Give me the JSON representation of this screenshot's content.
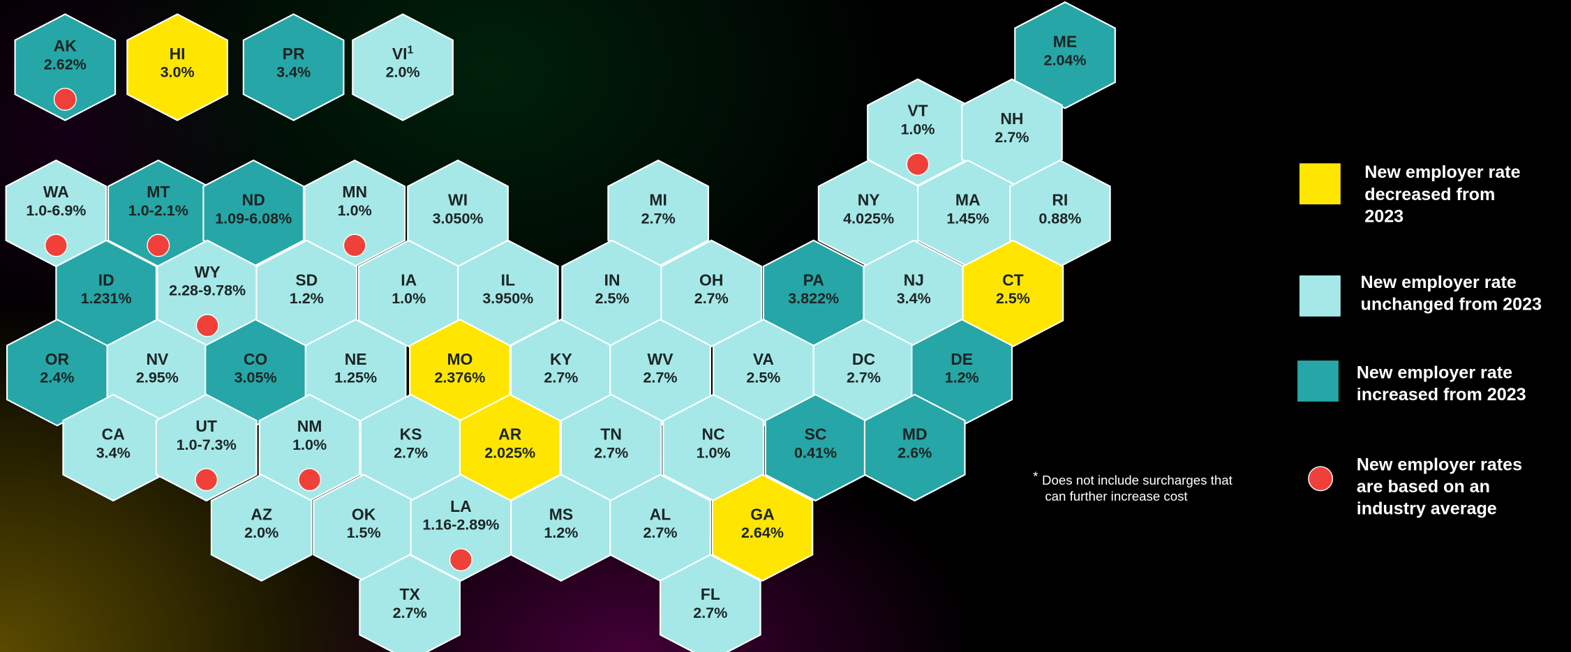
{
  "territories": [
    {
      "code": "AK",
      "rate": "2.62%",
      "color": "#26a6a6",
      "dot": true
    },
    {
      "code": "HI",
      "rate": "3.0%",
      "color": "#ffe600"
    },
    {
      "code": "PR",
      "rate": "3.4%",
      "color": "#26a6a6"
    },
    {
      "code": "VI",
      "superscript": "1",
      "rate": "2.0%",
      "color": "#a6e8e8"
    },
    {
      "code": "ME",
      "rate": "2.04%",
      "color": "#26a6a6"
    },
    {
      "code": "VT",
      "rate": "1.0%",
      "color": "#a6e8e8",
      "dot": true
    },
    {
      "code": "NH",
      "rate": "2.7%",
      "color": "#a6e8e8"
    },
    {
      "code": "WA",
      "rate": "1.0-6.9%",
      "color": "#a6e8e8",
      "dot": true
    },
    {
      "code": "MT",
      "rate": "1.0-2.1%",
      "color": "#26a6a6",
      "dot": true
    },
    {
      "code": "ND",
      "rate": "1.09-6.08%",
      "color": "#26a6a6"
    },
    {
      "code": "MN",
      "rate": "1.0%",
      "color": "#a6e8e8",
      "dot": true
    },
    {
      "code": "WI",
      "rate": "3.050%",
      "color": "#a6e8e8"
    },
    {
      "code": "MI",
      "rate": "2.7%",
      "color": "#a6e8e8"
    },
    {
      "code": "NY",
      "rate": "4.025%",
      "color": "#a6e8e8"
    },
    {
      "code": "MA",
      "rate": "1.45%",
      "color": "#a6e8e8"
    },
    {
      "code": "RI",
      "rate": "0.88%",
      "color": "#a6e8e8"
    },
    {
      "code": "ID",
      "rate": "1.231%",
      "color": "#26a6a6"
    },
    {
      "code": "WY",
      "rate": "2.28-9.78%",
      "color": "#a6e8e8",
      "dot": true
    },
    {
      "code": "SD",
      "rate": "1.2%",
      "color": "#a6e8e8"
    },
    {
      "code": "IA",
      "rate": "1.0%",
      "color": "#a6e8e8"
    },
    {
      "code": "IL",
      "rate": "3.950%",
      "color": "#a6e8e8"
    },
    {
      "code": "IN",
      "rate": "2.5%",
      "color": "#a6e8e8"
    },
    {
      "code": "OH",
      "rate": "2.7%",
      "color": "#a6e8e8"
    },
    {
      "code": "PA",
      "rate": "3.822%",
      "color": "#26a6a6"
    },
    {
      "code": "NJ",
      "rate": "3.4%",
      "color": "#a6e8e8"
    },
    {
      "code": "CT",
      "rate": "2.5%",
      "color": "#ffe600"
    },
    {
      "code": "OR",
      "rate": "2.4%",
      "color": "#26a6a6"
    },
    {
      "code": "NV",
      "rate": "2.95%",
      "color": "#a6e8e8"
    },
    {
      "code": "CO",
      "rate": "3.05%",
      "color": "#26a6a6"
    },
    {
      "code": "NE",
      "rate": "1.25%",
      "color": "#a6e8e8"
    },
    {
      "code": "MO",
      "rate": "2.376%",
      "color": "#ffe600"
    },
    {
      "code": "KY",
      "rate": "2.7%",
      "color": "#a6e8e8"
    },
    {
      "code": "WV",
      "rate": "2.7%",
      "color": "#a6e8e8"
    },
    {
      "code": "VA",
      "rate": "2.5%",
      "color": "#a6e8e8"
    },
    {
      "code": "DC",
      "rate": "2.7%",
      "color": "#a6e8e8"
    },
    {
      "code": "DE",
      "rate": "1.2%",
      "color": "#26a6a6"
    },
    {
      "code": "CA",
      "rate": "3.4%",
      "color": "#a6e8e8"
    },
    {
      "code": "UT",
      "rate": "1.0-7.3%",
      "color": "#a6e8e8",
      "dot": true
    },
    {
      "code": "NM",
      "rate": "1.0%",
      "color": "#a6e8e8",
      "dot": true
    },
    {
      "code": "KS",
      "rate": "2.7%",
      "color": "#a6e8e8"
    },
    {
      "code": "AR",
      "rate": "2.025%",
      "color": "#ffe600"
    },
    {
      "code": "TN",
      "rate": "2.7%",
      "color": "#a6e8e8"
    },
    {
      "code": "NC",
      "rate": "1.0%",
      "color": "#a6e8e8"
    },
    {
      "code": "SC",
      "rate": "0.41%",
      "color": "#26a6a6"
    },
    {
      "code": "MD",
      "rate": "2.6%",
      "color": "#26a6a6"
    },
    {
      "code": "AZ",
      "rate": "2.0%",
      "color": "#a6e8e8"
    },
    {
      "code": "OK",
      "rate": "1.5%",
      "color": "#a6e8e8"
    },
    {
      "code": "LA",
      "rate": "1.16-2.89%",
      "color": "#a6e8e8",
      "dot": true
    },
    {
      "code": "MS",
      "rate": "1.2%",
      "color": "#a6e8e8"
    },
    {
      "code": "AL",
      "rate": "2.7%",
      "color": "#a6e8e8"
    },
    {
      "code": "GA",
      "rate": "2.64%",
      "color": "#ffe600"
    },
    {
      "code": "TX",
      "rate": "2.7%",
      "color": "#a6e8e8"
    },
    {
      "code": "FL",
      "rate": "2.7%",
      "color": "#a6e8e8"
    }
  ],
  "legend": [
    {
      "color": "#ffe600",
      "lines": [
        "New employer rate",
        "decreased from",
        "2023"
      ]
    },
    {
      "color": "#a6e8e8",
      "lines": [
        "New employer rate",
        "unchanged from 2023"
      ]
    },
    {
      "color": "#26a6a6",
      "lines": [
        "New employer rate",
        "increased from 2023"
      ]
    },
    {
      "dot": true,
      "lines": [
        "New employer rates",
        "are based on an",
        "industry average"
      ]
    }
  ],
  "footnote": {
    "marker": "*",
    "lines": [
      "Does not include surcharges that",
      "can further increase cost"
    ]
  }
}
